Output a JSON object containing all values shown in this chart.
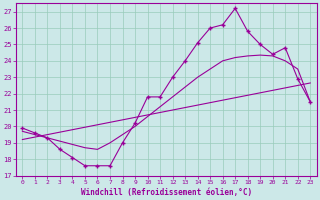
{
  "x": [
    0,
    1,
    2,
    3,
    4,
    5,
    6,
    7,
    8,
    9,
    10,
    11,
    12,
    13,
    14,
    15,
    16,
    17,
    18,
    19,
    20,
    21,
    22,
    23
  ],
  "y_main": [
    19.9,
    19.6,
    19.3,
    18.6,
    18.1,
    17.6,
    17.6,
    17.6,
    19.0,
    20.2,
    21.8,
    21.8,
    23.0,
    24.0,
    25.1,
    26.0,
    26.2,
    27.2,
    25.8,
    25.0,
    24.4,
    24.8,
    22.9,
    21.5
  ],
  "y_linear": [
    19.2,
    19.35,
    19.5,
    19.65,
    19.8,
    19.95,
    20.1,
    20.25,
    20.4,
    20.55,
    20.7,
    20.85,
    21.0,
    21.15,
    21.3,
    21.45,
    21.6,
    21.75,
    21.9,
    22.05,
    22.2,
    22.35,
    22.5,
    22.65
  ],
  "y_smooth": [
    19.7,
    19.5,
    19.3,
    19.1,
    18.9,
    18.7,
    18.6,
    19.0,
    19.5,
    20.0,
    20.6,
    21.2,
    21.8,
    22.4,
    23.0,
    23.5,
    24.0,
    24.2,
    24.3,
    24.35,
    24.3,
    24.0,
    23.5,
    21.5
  ],
  "line_color": "#990099",
  "bg_color": "#cce8e8",
  "grid_color": "#99ccbb",
  "xlabel": "Windchill (Refroidissement éolien,°C)",
  "ylim": [
    17,
    27.5
  ],
  "xlim": [
    -0.5,
    23.5
  ],
  "yticks": [
    17,
    18,
    19,
    20,
    21,
    22,
    23,
    24,
    25,
    26,
    27
  ],
  "xticks": [
    0,
    1,
    2,
    3,
    4,
    5,
    6,
    7,
    8,
    9,
    10,
    11,
    12,
    13,
    14,
    15,
    16,
    17,
    18,
    19,
    20,
    21,
    22,
    23
  ],
  "marker": "+",
  "markersize": 3.5,
  "linewidth": 0.8
}
